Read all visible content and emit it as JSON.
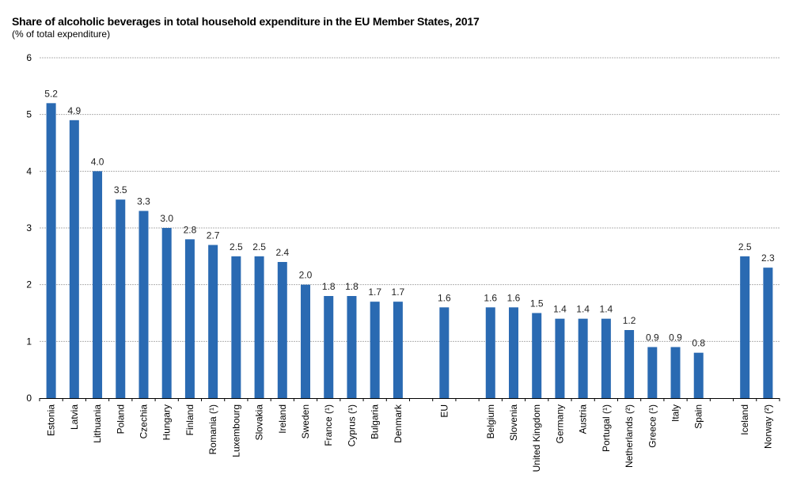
{
  "chart_data": {
    "type": "bar",
    "title": "Share of alcoholic beverages in total household expenditure in the EU Member States, 2017",
    "subtitle": "(% of total expenditure)",
    "xlabel": "",
    "ylabel": "",
    "ylim": [
      0,
      6
    ],
    "yticks": [
      "0",
      "1",
      "2",
      "3",
      "4",
      "5",
      "6"
    ],
    "grid": true,
    "legend": "none",
    "bar_color": "#2a6ab2",
    "categories": [
      "Estonia",
      "Latvia",
      "Lithuania",
      "Poland",
      "Czechia",
      "Hungary",
      "Finland",
      "Romania (¹)",
      "Luxembourg",
      "Slovakia",
      "Ireland",
      "Sweden",
      "France (¹)",
      "Cyprus (¹)",
      "Bulgaria",
      "Denmark",
      "",
      "EU",
      "",
      "Belgium",
      "Slovenia",
      "United Kingdom",
      "Germany",
      "Austria",
      "Portugal (¹)",
      "Netherlands (²)",
      "Greece (¹)",
      "Italy",
      "Spain",
      "",
      "Iceland",
      "Norway (²)"
    ],
    "values": [
      5.2,
      4.9,
      4.0,
      3.5,
      3.3,
      3.0,
      2.8,
      2.7,
      2.5,
      2.5,
      2.4,
      2.0,
      1.8,
      1.8,
      1.7,
      1.7,
      null,
      1.6,
      null,
      1.6,
      1.6,
      1.5,
      1.4,
      1.4,
      1.4,
      1.2,
      0.9,
      0.9,
      0.8,
      null,
      2.5,
      2.3
    ],
    "value_labels": [
      "5.2",
      "4.9",
      "4.0",
      "3.5",
      "3.3",
      "3.0",
      "2.8",
      "2.7",
      "2.5",
      "2.5",
      "2.4",
      "2.0",
      "1.8",
      "1.8",
      "1.7",
      "1.7",
      "",
      "1.6",
      "",
      "1.6",
      "1.6",
      "1.5",
      "1.4",
      "1.4",
      "1.4",
      "1.2",
      "0.9",
      "0.9",
      "0.8",
      "",
      "2.5",
      "2.3"
    ]
  }
}
